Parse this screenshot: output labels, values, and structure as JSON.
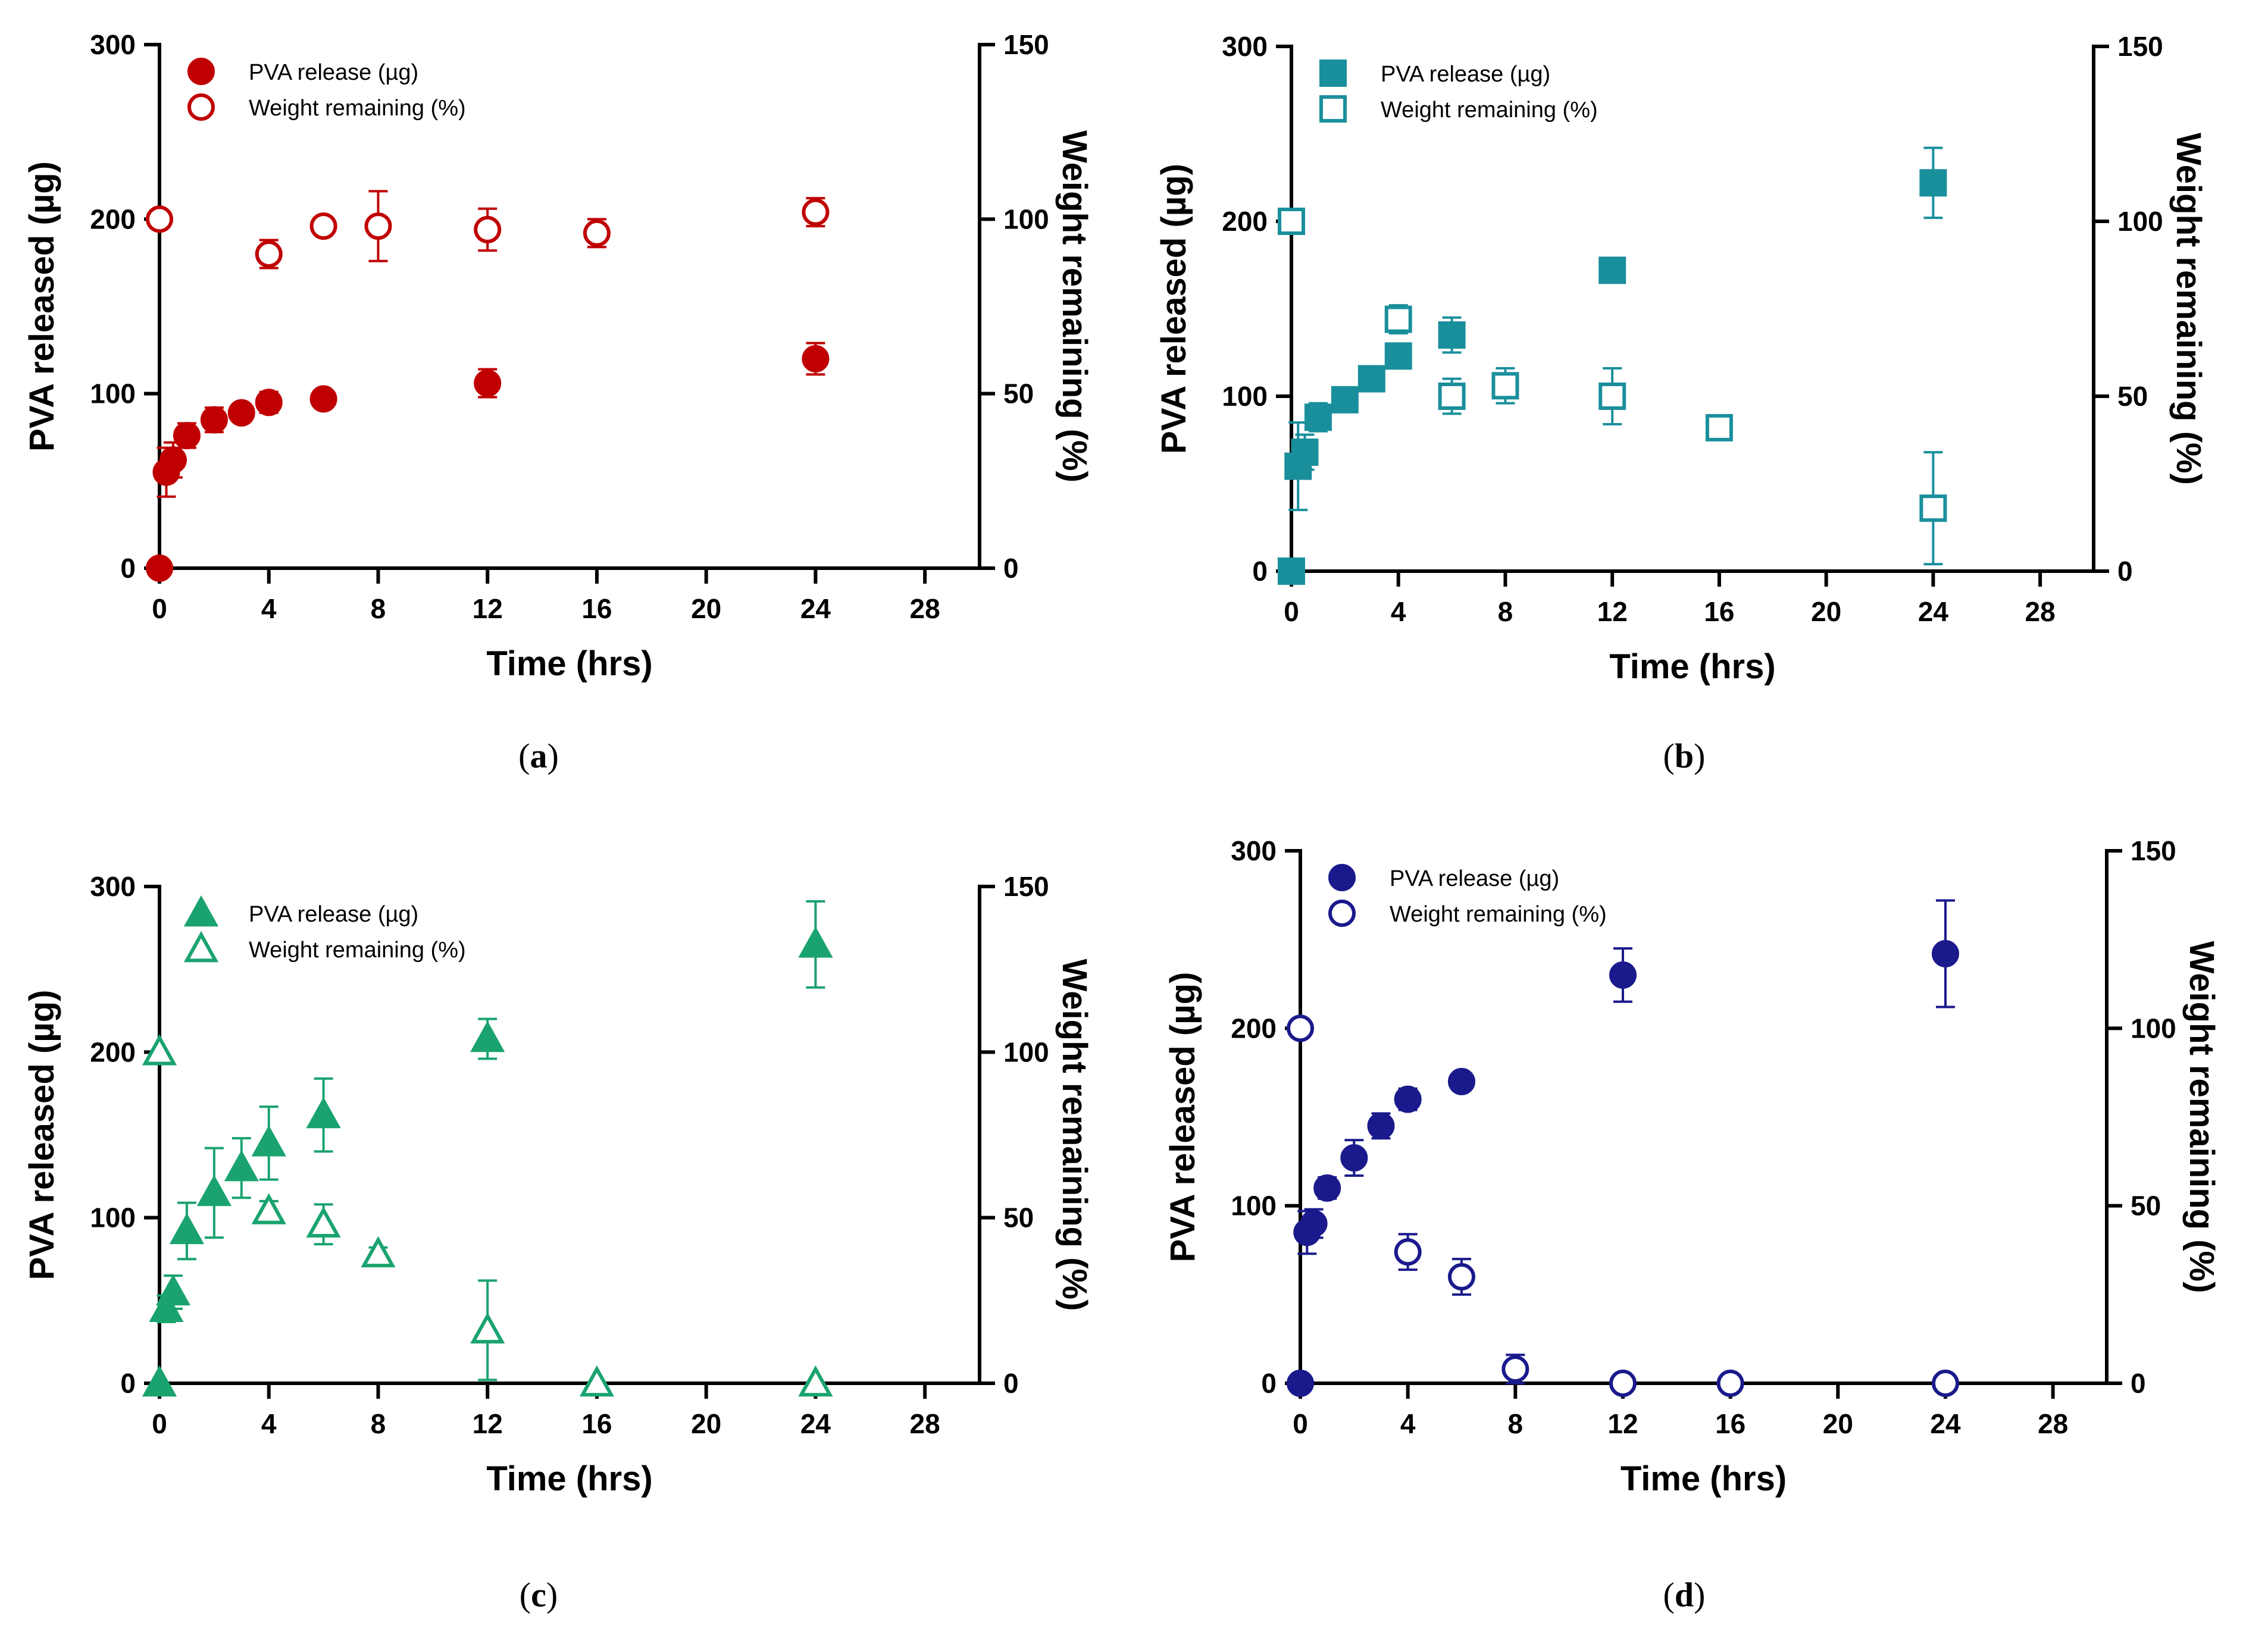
{
  "figure": {
    "legend_labels": {
      "release": "PVA release (µg)",
      "weight": "Weight remaining (%)"
    }
  },
  "chart_data": [
    {
      "panel": "a",
      "caption": {
        "open": "(",
        "letter": "a",
        "close": ")"
      },
      "type": "scatter",
      "color": "#c00000",
      "marker": "circle",
      "xlabel": "Time (hrs)",
      "ylabel": "PVA released (µg)",
      "y2label": "Weight remaining (%)",
      "xlim": [
        0,
        30
      ],
      "ylim": [
        0,
        300
      ],
      "y2lim": [
        0,
        150
      ],
      "xticks": [
        0,
        4,
        8,
        12,
        16,
        20,
        24,
        28
      ],
      "yticks": [
        0,
        100,
        200,
        300
      ],
      "y2ticks": [
        0,
        50,
        100,
        150
      ],
      "series": [
        {
          "name": "PVA release (µg)",
          "axis": "left",
          "filled": true,
          "x": [
            0,
            0.25,
            0.5,
            1,
            2,
            3,
            4,
            6,
            12,
            24
          ],
          "y": [
            0,
            55,
            62,
            76,
            85,
            89,
            95,
            97,
            106,
            120
          ],
          "err": [
            0,
            14,
            10,
            7,
            7,
            4,
            6,
            3,
            8,
            9
          ]
        },
        {
          "name": "Weight remaining (%)",
          "axis": "right",
          "filled": false,
          "x": [
            0,
            4,
            6,
            8,
            12,
            16,
            24
          ],
          "y": [
            100,
            90,
            98,
            98,
            97,
            96,
            102
          ],
          "err": [
            0,
            4,
            2,
            10,
            6,
            4,
            4
          ]
        }
      ]
    },
    {
      "panel": "b",
      "caption": {
        "open": "(",
        "letter": "b",
        "close": ")"
      },
      "type": "scatter",
      "color": "#1a8f9c",
      "marker": "square",
      "xlabel": "Time (hrs)",
      "ylabel": "PVA released (µg)",
      "y2label": "Weight remaining (%)",
      "xlim": [
        0,
        30
      ],
      "ylim": [
        0,
        300
      ],
      "y2lim": [
        0,
        150
      ],
      "xticks": [
        0,
        4,
        8,
        12,
        16,
        20,
        24,
        28
      ],
      "yticks": [
        0,
        100,
        200,
        300
      ],
      "y2ticks": [
        0,
        50,
        100,
        150
      ],
      "series": [
        {
          "name": "PVA release (µg)",
          "axis": "left",
          "filled": true,
          "x": [
            0,
            0.25,
            0.5,
            1,
            2,
            3,
            4,
            6,
            12,
            24
          ],
          "y": [
            0,
            60,
            68,
            88,
            98,
            110,
            123,
            135,
            172,
            222
          ],
          "err": [
            0,
            25,
            10,
            8,
            7,
            4,
            4,
            10,
            6,
            20
          ]
        },
        {
          "name": "Weight remaining (%)",
          "axis": "right",
          "filled": false,
          "x": [
            0,
            4,
            6,
            8,
            12,
            16,
            24
          ],
          "y": [
            100,
            72,
            50,
            53,
            50,
            41,
            18
          ],
          "err": [
            0,
            4,
            5,
            5,
            8,
            1,
            16
          ]
        }
      ]
    },
    {
      "panel": "c",
      "caption": {
        "open": "(",
        "letter": "c",
        "close": ")"
      },
      "type": "scatter",
      "color": "#1aa36f",
      "marker": "triangle",
      "xlabel": "Time (hrs)",
      "ylabel": "PVA released (µg)",
      "y2label": "Weight remaining (%)",
      "xlim": [
        0,
        30
      ],
      "ylim": [
        0,
        300
      ],
      "y2lim": [
        0,
        150
      ],
      "xticks": [
        0,
        4,
        8,
        12,
        16,
        20,
        24,
        28
      ],
      "yticks": [
        0,
        100,
        200,
        300
      ],
      "y2ticks": [
        0,
        50,
        100,
        150
      ],
      "series": [
        {
          "name": "PVA release (µg)",
          "axis": "left",
          "filled": true,
          "x": [
            0,
            0.25,
            0.5,
            1,
            2,
            3,
            4,
            6,
            12,
            24
          ],
          "y": [
            0,
            45,
            55,
            92,
            115,
            130,
            145,
            162,
            208,
            265
          ],
          "err": [
            0,
            8,
            10,
            17,
            27,
            18,
            22,
            22,
            12,
            26
          ]
        },
        {
          "name": "Weight remaining (%)",
          "axis": "right",
          "filled": false,
          "x": [
            0,
            4,
            6,
            8,
            12,
            16,
            24
          ],
          "y": [
            100,
            52,
            48,
            39,
            16,
            0,
            0
          ],
          "err": [
            0,
            3,
            6,
            2,
            15,
            0,
            0
          ]
        }
      ]
    },
    {
      "panel": "d",
      "caption": {
        "open": "(",
        "letter": "d",
        "close": ")"
      },
      "type": "scatter",
      "color": "#1a1a8c",
      "marker": "circle",
      "xlabel": "Time (hrs)",
      "ylabel": "PVA released (µg)",
      "y2label": "Weight remaining (%)",
      "xlim": [
        0,
        30
      ],
      "ylim": [
        0,
        300
      ],
      "y2lim": [
        0,
        150
      ],
      "xticks": [
        0,
        4,
        8,
        12,
        16,
        20,
        24,
        28
      ],
      "yticks": [
        0,
        100,
        200,
        300
      ],
      "y2ticks": [
        0,
        50,
        100,
        150
      ],
      "series": [
        {
          "name": "PVA release (µg)",
          "axis": "left",
          "filled": true,
          "x": [
            0,
            0.25,
            0.5,
            1,
            2,
            3,
            4,
            6,
            12,
            24
          ],
          "y": [
            0,
            85,
            90,
            110,
            127,
            145,
            160,
            170,
            230,
            242
          ],
          "err": [
            0,
            12,
            8,
            6,
            10,
            7,
            6,
            3,
            15,
            30
          ]
        },
        {
          "name": "Weight remaining (%)",
          "axis": "right",
          "filled": false,
          "x": [
            0,
            4,
            6,
            8,
            12,
            16,
            24
          ],
          "y": [
            100,
            37,
            30,
            4,
            0,
            0,
            0
          ],
          "err": [
            0,
            5,
            5,
            4,
            0,
            0,
            0
          ]
        }
      ]
    }
  ]
}
